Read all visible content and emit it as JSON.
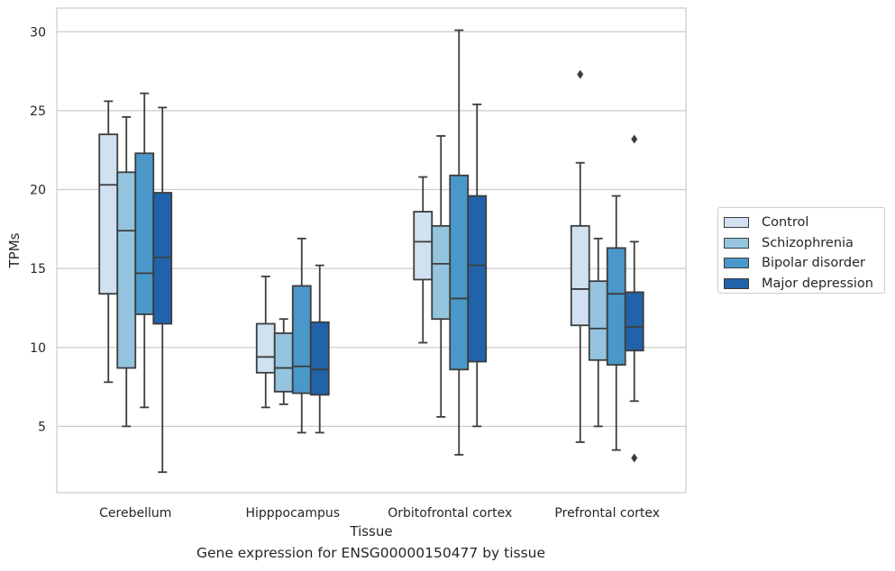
{
  "chart_data": {
    "type": "box",
    "caption": "Gene expression for ENSG00000150477 by tissue",
    "xlabel": "Tissue",
    "ylabel": "TPMs",
    "ylim": [
      0.8,
      31.5
    ],
    "yticks": [
      5,
      10,
      15,
      20,
      25,
      30
    ],
    "grid": true,
    "legend_position": "right",
    "categories": [
      "Cerebellum",
      "Hipppocampus",
      "Orbitofrontal cortex",
      "Prefrontal cortex"
    ],
    "series": [
      {
        "name": "Control",
        "color": "#d0e1f2",
        "boxes": [
          {
            "whislo": 7.8,
            "q1": 13.4,
            "med": 20.3,
            "q3": 23.5,
            "whishi": 25.6,
            "fliers": []
          },
          {
            "whislo": 6.2,
            "q1": 8.4,
            "med": 9.4,
            "q3": 11.5,
            "whishi": 14.5,
            "fliers": []
          },
          {
            "whislo": 10.3,
            "q1": 14.3,
            "med": 16.7,
            "q3": 18.6,
            "whishi": 20.8,
            "fliers": []
          },
          {
            "whislo": 4.0,
            "q1": 11.4,
            "med": 13.7,
            "q3": 17.7,
            "whishi": 21.7,
            "fliers": [
              27.3
            ]
          }
        ]
      },
      {
        "name": "Schizophrenia",
        "color": "#94c4df",
        "boxes": [
          {
            "whislo": 5.0,
            "q1": 8.7,
            "med": 17.4,
            "q3": 21.1,
            "whishi": 24.6,
            "fliers": []
          },
          {
            "whislo": 6.4,
            "q1": 7.2,
            "med": 8.7,
            "q3": 10.9,
            "whishi": 11.8,
            "fliers": []
          },
          {
            "whislo": 5.6,
            "q1": 11.8,
            "med": 15.3,
            "q3": 17.7,
            "whishi": 23.4,
            "fliers": []
          },
          {
            "whislo": 5.0,
            "q1": 9.2,
            "med": 11.2,
            "q3": 14.2,
            "whishi": 16.9,
            "fliers": []
          }
        ]
      },
      {
        "name": "Bipolar disorder",
        "color": "#4a98c9",
        "boxes": [
          {
            "whislo": 6.2,
            "q1": 12.1,
            "med": 14.7,
            "q3": 22.3,
            "whishi": 26.1,
            "fliers": []
          },
          {
            "whislo": 4.6,
            "q1": 7.1,
            "med": 8.8,
            "q3": 13.9,
            "whishi": 16.9,
            "fliers": []
          },
          {
            "whislo": 3.2,
            "q1": 8.6,
            "med": 13.1,
            "q3": 20.9,
            "whishi": 30.1,
            "fliers": []
          },
          {
            "whislo": 3.5,
            "q1": 8.9,
            "med": 13.4,
            "q3": 16.3,
            "whishi": 19.6,
            "fliers": []
          }
        ]
      },
      {
        "name": "Major depression",
        "color": "#2163aa",
        "boxes": [
          {
            "whislo": 2.1,
            "q1": 11.5,
            "med": 15.7,
            "q3": 19.8,
            "whishi": 25.2,
            "fliers": []
          },
          {
            "whislo": 4.6,
            "q1": 7.0,
            "med": 8.6,
            "q3": 11.6,
            "whishi": 15.2,
            "fliers": []
          },
          {
            "whislo": 5.0,
            "q1": 9.1,
            "med": 15.2,
            "q3": 19.6,
            "whishi": 25.4,
            "fliers": []
          },
          {
            "whislo": 6.6,
            "q1": 9.8,
            "med": 11.3,
            "q3": 13.5,
            "whishi": 16.7,
            "fliers": [
              3.0,
              23.2
            ]
          }
        ]
      }
    ]
  }
}
